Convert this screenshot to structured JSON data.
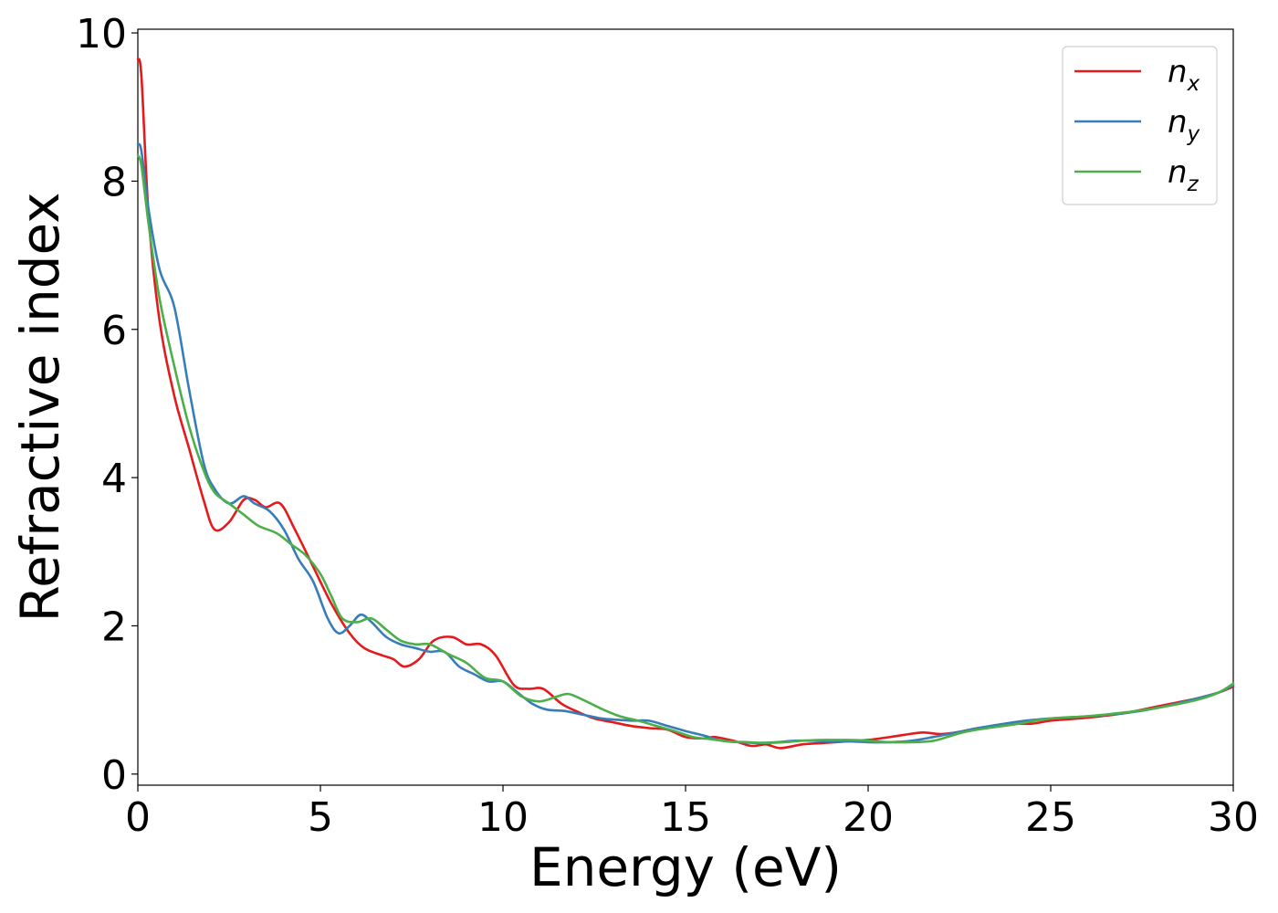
{
  "chart_data": {
    "type": "line",
    "title": "",
    "xlabel": "Energy (eV)",
    "ylabel": "Refractive index",
    "xlim": [
      0,
      30
    ],
    "ylim": [
      -0.15,
      10.05
    ],
    "xticks": [
      0,
      5,
      10,
      15,
      20,
      25,
      30
    ],
    "yticks": [
      0,
      2,
      4,
      6,
      8,
      10
    ],
    "grid": false,
    "legend_position": "top-right",
    "series": [
      {
        "name": "n_x",
        "legend_base": "n",
        "legend_sub": "x",
        "color": "#e41a1c",
        "x": [
          0,
          0.1,
          0.3,
          0.6,
          1.0,
          1.4,
          1.8,
          2.1,
          2.5,
          2.9,
          3.2,
          3.5,
          3.9,
          4.3,
          4.8,
          5.3,
          5.8,
          6.2,
          6.7,
          7.0,
          7.3,
          7.7,
          8.1,
          8.6,
          9.0,
          9.4,
          9.8,
          10.3,
          10.7,
          11.1,
          11.6,
          12.0,
          12.5,
          13.0,
          13.5,
          14.0,
          14.5,
          15.0,
          15.5,
          15.8,
          16.3,
          16.8,
          17.2,
          17.6,
          18.2,
          18.8,
          19.4,
          20.0,
          20.6,
          21.0,
          21.5,
          22.0,
          22.5,
          23.0,
          23.5,
          24.0,
          24.5,
          25.0,
          26.0,
          27.0,
          28.0,
          29.0,
          29.6,
          30.0
        ],
        "y": [
          9.65,
          9.4,
          7.5,
          6.1,
          5.1,
          4.4,
          3.7,
          3.3,
          3.4,
          3.7,
          3.7,
          3.6,
          3.65,
          3.3,
          2.8,
          2.3,
          1.9,
          1.7,
          1.6,
          1.55,
          1.45,
          1.55,
          1.8,
          1.85,
          1.75,
          1.75,
          1.6,
          1.2,
          1.15,
          1.15,
          0.95,
          0.85,
          0.75,
          0.7,
          0.65,
          0.62,
          0.6,
          0.5,
          0.48,
          0.5,
          0.45,
          0.38,
          0.4,
          0.35,
          0.4,
          0.42,
          0.44,
          0.46,
          0.5,
          0.53,
          0.56,
          0.54,
          0.57,
          0.62,
          0.65,
          0.68,
          0.68,
          0.72,
          0.76,
          0.82,
          0.92,
          1.02,
          1.1,
          1.18
        ]
      },
      {
        "name": "n_y",
        "legend_base": "n",
        "legend_sub": "y",
        "color": "#377eb8",
        "x": [
          0,
          0.1,
          0.3,
          0.6,
          1.0,
          1.4,
          1.8,
          2.1,
          2.5,
          2.9,
          3.2,
          3.6,
          4.0,
          4.4,
          4.8,
          5.2,
          5.5,
          5.8,
          6.1,
          6.4,
          6.8,
          7.2,
          7.6,
          8.0,
          8.4,
          8.8,
          9.2,
          9.6,
          10.0,
          10.4,
          10.8,
          11.2,
          11.7,
          12.2,
          12.7,
          13.2,
          13.6,
          14.0,
          14.5,
          15.0,
          15.5,
          16.0,
          16.5,
          17.0,
          17.5,
          18.0,
          18.5,
          19.0,
          19.5,
          20.0,
          20.6,
          21.2,
          22.0,
          23.0,
          24.0,
          24.5,
          25.0,
          26.0,
          27.0,
          28.0,
          29.0,
          29.6,
          30.0
        ],
        "y": [
          8.5,
          8.4,
          7.6,
          6.8,
          6.3,
          5.2,
          4.2,
          3.85,
          3.65,
          3.75,
          3.65,
          3.55,
          3.3,
          2.9,
          2.6,
          2.1,
          1.9,
          2.0,
          2.15,
          2.05,
          1.85,
          1.75,
          1.7,
          1.65,
          1.65,
          1.45,
          1.35,
          1.25,
          1.25,
          1.1,
          0.95,
          0.87,
          0.85,
          0.8,
          0.75,
          0.73,
          0.72,
          0.72,
          0.65,
          0.58,
          0.52,
          0.45,
          0.43,
          0.42,
          0.43,
          0.45,
          0.45,
          0.44,
          0.44,
          0.43,
          0.43,
          0.45,
          0.52,
          0.62,
          0.7,
          0.73,
          0.75,
          0.78,
          0.82,
          0.9,
          1.02,
          1.1,
          1.2
        ]
      },
      {
        "name": "n_z",
        "legend_base": "n",
        "legend_sub": "z",
        "color": "#4daf4a",
        "x": [
          0,
          0.1,
          0.3,
          0.6,
          1.0,
          1.4,
          1.8,
          2.1,
          2.5,
          2.9,
          3.3,
          3.8,
          4.2,
          4.6,
          5.0,
          5.3,
          5.6,
          6.0,
          6.4,
          6.8,
          7.2,
          7.6,
          8.0,
          8.5,
          9.0,
          9.5,
          10.0,
          10.5,
          11.0,
          11.5,
          11.8,
          12.2,
          12.7,
          13.2,
          13.7,
          14.2,
          14.7,
          15.2,
          15.7,
          16.2,
          16.7,
          17.2,
          17.7,
          18.2,
          18.8,
          19.4,
          20.0,
          20.6,
          21.2,
          21.8,
          22.5,
          23.0,
          24.0,
          25.0,
          26.0,
          27.0,
          28.0,
          29.0,
          29.6,
          30.0
        ],
        "y": [
          8.35,
          8.2,
          7.4,
          6.4,
          5.5,
          4.7,
          4.1,
          3.8,
          3.65,
          3.5,
          3.35,
          3.25,
          3.1,
          2.95,
          2.7,
          2.4,
          2.1,
          2.05,
          2.1,
          1.95,
          1.8,
          1.75,
          1.75,
          1.62,
          1.5,
          1.3,
          1.25,
          1.05,
          0.98,
          1.05,
          1.08,
          1.0,
          0.88,
          0.78,
          0.72,
          0.65,
          0.58,
          0.5,
          0.47,
          0.44,
          0.43,
          0.42,
          0.43,
          0.45,
          0.46,
          0.46,
          0.45,
          0.43,
          0.43,
          0.45,
          0.55,
          0.6,
          0.67,
          0.75,
          0.78,
          0.83,
          0.9,
          1.0,
          1.1,
          1.22
        ]
      }
    ]
  }
}
